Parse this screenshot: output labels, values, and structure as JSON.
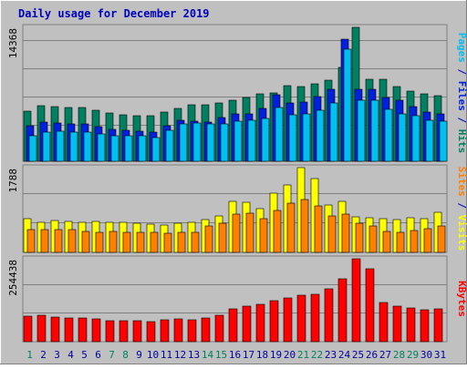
{
  "colors": {
    "frame_bg": "#c0c0c0",
    "frame_light": "#ffffff",
    "frame_dark": "#808080",
    "plot_bg": "#c0c0c0",
    "grid": "#808080",
    "title": "#0000c0",
    "pages": "#00c0f0",
    "files": "#0020e0",
    "hits": "#008060",
    "visits": "#ffff00",
    "sites": "#ff8000",
    "kbytes": "#ff0000",
    "label_weekday": "#0000a0",
    "label_weekend": "#008060"
  },
  "chart_data": {
    "title": "Daily usage for December 2019",
    "type": "bar",
    "days": [
      "1",
      "2",
      "3",
      "4",
      "5",
      "6",
      "7",
      "8",
      "9",
      "10",
      "11",
      "12",
      "13",
      "14",
      "15",
      "16",
      "17",
      "18",
      "19",
      "20",
      "21",
      "22",
      "23",
      "24",
      "25",
      "26",
      "27",
      "28",
      "29",
      "30",
      "31"
    ],
    "weekend_days": [
      "1",
      "7",
      "8",
      "14",
      "15",
      "21",
      "22",
      "28",
      "29"
    ],
    "panels": [
      {
        "id": "hits",
        "max_label": "14368",
        "ymax": 14368,
        "legend": [
          {
            "text": "Pages",
            "color_key": "pages"
          },
          {
            "text": " / ",
            "color_key": "title"
          },
          {
            "text": "Files",
            "color_key": "files"
          },
          {
            "text": " / ",
            "color_key": "title"
          },
          {
            "text": "Hits",
            "color_key": "hits"
          }
        ],
        "series": [
          {
            "name": "Hits",
            "color_key": "hits",
            "values": [
              5400,
              6000,
              5900,
              5800,
              5800,
              5500,
              5200,
              5000,
              4900,
              4900,
              5300,
              5700,
              6100,
              6100,
              6300,
              6500,
              6800,
              7200,
              7300,
              8100,
              8000,
              8300,
              8700,
              10100,
              14368,
              8800,
              8800,
              8000,
              7500,
              7200,
              7000
            ]
          },
          {
            "name": "Files",
            "color_key": "files",
            "values": [
              3800,
              4200,
              4100,
              4000,
              4000,
              3700,
              3400,
              3300,
              3200,
              3100,
              3800,
              4400,
              4300,
              4200,
              4700,
              5100,
              5100,
              5700,
              7100,
              6300,
              6400,
              6900,
              7700,
              13100,
              7700,
              7700,
              6800,
              6500,
              5900,
              5300,
              5100
            ]
          },
          {
            "name": "Pages",
            "color_key": "pages",
            "values": [
              2700,
              3100,
              3200,
              3100,
              3100,
              2900,
              2700,
              2700,
              2700,
              2500,
              3300,
              4000,
              4100,
              4000,
              4000,
              4300,
              4400,
              4600,
              5800,
              5000,
              5100,
              5500,
              6300,
              12000,
              6500,
              6500,
              5600,
              5100,
              4900,
              4400,
              4300
            ]
          }
        ]
      },
      {
        "id": "visits",
        "max_label": "1788",
        "ymax": 1788,
        "legend": [
          {
            "text": "Sites",
            "color_key": "sites"
          },
          {
            "text": " / ",
            "color_key": "title"
          },
          {
            "text": "Visits",
            "color_key": "visits"
          }
        ],
        "series": [
          {
            "name": "Visits",
            "color_key": "visits",
            "values": [
              720,
              640,
              680,
              660,
              640,
              650,
              640,
              640,
              610,
              590,
              580,
              610,
              630,
              700,
              760,
              1080,
              1050,
              920,
              1250,
              1420,
              1788,
              1550,
              1000,
              1080,
              750,
              730,
              710,
              700,
              740,
              720,
              850
            ]
          },
          {
            "name": "Sites",
            "color_key": "sites",
            "values": [
              490,
              480,
              490,
              480,
              440,
              430,
              440,
              420,
              430,
              420,
              410,
              430,
              420,
              560,
              610,
              800,
              830,
              720,
              890,
              1040,
              1110,
              980,
              770,
              810,
              610,
              560,
              440,
              420,
              460,
              500,
              560
            ]
          }
        ]
      },
      {
        "id": "kbytes",
        "max_label": "254438",
        "ymax": 254438,
        "legend": [
          {
            "text": "KBytes",
            "color_key": "kbytes"
          }
        ],
        "series": [
          {
            "name": "KBytes",
            "color_key": "kbytes",
            "values": [
              78000,
              80000,
              76000,
              73000,
              72000,
              70000,
              65000,
              64000,
              63000,
              62000,
              66000,
              70000,
              68000,
              74000,
              82000,
              102000,
              108000,
              114000,
              125000,
              134000,
              143000,
              146000,
              163000,
              192000,
              254438,
              225000,
              120000,
              110000,
              103000,
              97000,
              100000
            ]
          }
        ]
      }
    ]
  }
}
